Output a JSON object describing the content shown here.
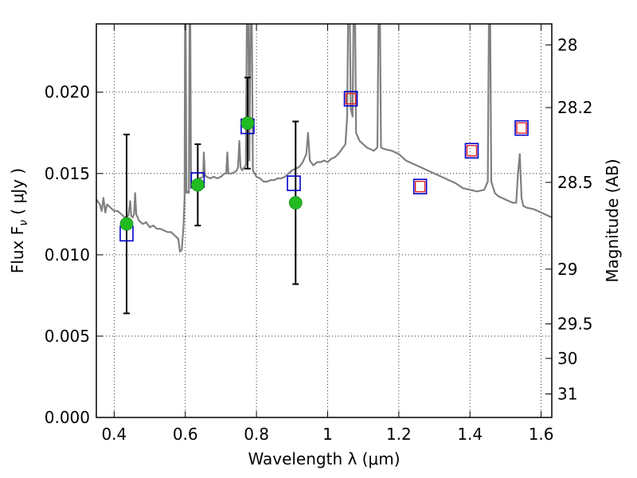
{
  "chart_data": {
    "type": "scatter",
    "xlabel": "Wavelength  λ (μm)",
    "ylabel_left": "Flux  F",
    "ylabel_left_sub": "ν",
    "ylabel_left_unit": "  ( μJy )",
    "ylabel_right": "Magnitude (AB)",
    "xlim": [
      0.35,
      1.63
    ],
    "ylim": [
      0.0,
      0.0242
    ],
    "grid": true,
    "x_ticks": [
      {
        "value": 0.4,
        "label": "0.4"
      },
      {
        "value": 0.6,
        "label": "0.6"
      },
      {
        "value": 0.8,
        "label": "0.8"
      },
      {
        "value": 1.0,
        "label": "1"
      },
      {
        "value": 1.2,
        "label": "1.2"
      },
      {
        "value": 1.4,
        "label": "1.4"
      },
      {
        "value": 1.6,
        "label": "1.6"
      }
    ],
    "y_ticks": [
      {
        "value": 0.0,
        "label": "0.000"
      },
      {
        "value": 0.005,
        "label": "0.005"
      },
      {
        "value": 0.01,
        "label": "0.010"
      },
      {
        "value": 0.015,
        "label": "0.015"
      },
      {
        "value": 0.02,
        "label": "0.020"
      }
    ],
    "mag_ticks": [
      {
        "mag": 28,
        "label": "28"
      },
      {
        "mag": 28.2,
        "label": "28.2"
      },
      {
        "mag": 28.5,
        "label": "28.5"
      },
      {
        "mag": 29,
        "label": "29"
      },
      {
        "mag": 29.5,
        "label": "29.5"
      },
      {
        "mag": 30,
        "label": "30"
      },
      {
        "mag": 31,
        "label": "31"
      }
    ],
    "spectrum": {
      "color": "#808080",
      "points": [
        [
          0.35,
          0.0134
        ],
        [
          0.36,
          0.0131
        ],
        [
          0.365,
          0.0127
        ],
        [
          0.37,
          0.0135
        ],
        [
          0.375,
          0.0126
        ],
        [
          0.38,
          0.0131
        ],
        [
          0.39,
          0.0129
        ],
        [
          0.4,
          0.0127
        ],
        [
          0.41,
          0.0127
        ],
        [
          0.42,
          0.0125
        ],
        [
          0.43,
          0.0123
        ],
        [
          0.44,
          0.0124
        ],
        [
          0.445,
          0.0133
        ],
        [
          0.448,
          0.0124
        ],
        [
          0.452,
          0.0123
        ],
        [
          0.456,
          0.0125
        ],
        [
          0.459,
          0.0138
        ],
        [
          0.462,
          0.0125
        ],
        [
          0.47,
          0.0121
        ],
        [
          0.48,
          0.0119
        ],
        [
          0.49,
          0.012
        ],
        [
          0.5,
          0.0117
        ],
        [
          0.51,
          0.0118
        ],
        [
          0.52,
          0.0116
        ],
        [
          0.53,
          0.0116
        ],
        [
          0.54,
          0.0115
        ],
        [
          0.55,
          0.0114
        ],
        [
          0.56,
          0.0114
        ],
        [
          0.57,
          0.0112
        ],
        [
          0.58,
          0.011
        ],
        [
          0.585,
          0.0102
        ],
        [
          0.59,
          0.0103
        ],
        [
          0.595,
          0.0118
        ],
        [
          0.598,
          0.0135
        ],
        [
          0.6,
          0.03
        ],
        [
          0.603,
          0.0138
        ],
        [
          0.607,
          0.0139
        ],
        [
          0.61,
          0.0138
        ],
        [
          0.613,
          0.03
        ],
        [
          0.616,
          0.0141
        ],
        [
          0.62,
          0.0143
        ],
        [
          0.63,
          0.0145
        ],
        [
          0.64,
          0.0147
        ],
        [
          0.65,
          0.0148
        ],
        [
          0.652,
          0.0163
        ],
        [
          0.655,
          0.0149
        ],
        [
          0.66,
          0.0148
        ],
        [
          0.67,
          0.0147
        ],
        [
          0.68,
          0.0148
        ],
        [
          0.69,
          0.0147
        ],
        [
          0.7,
          0.0148
        ],
        [
          0.71,
          0.015
        ],
        [
          0.715,
          0.015
        ],
        [
          0.718,
          0.0163
        ],
        [
          0.721,
          0.015
        ],
        [
          0.73,
          0.015
        ],
        [
          0.74,
          0.0151
        ],
        [
          0.745,
          0.0152
        ],
        [
          0.748,
          0.0154
        ],
        [
          0.752,
          0.017
        ],
        [
          0.755,
          0.0154
        ],
        [
          0.76,
          0.0152
        ],
        [
          0.77,
          0.0155
        ],
        [
          0.775,
          0.03
        ],
        [
          0.78,
          0.0158
        ],
        [
          0.785,
          0.03
        ],
        [
          0.79,
          0.0152
        ],
        [
          0.8,
          0.0148
        ],
        [
          0.81,
          0.0147
        ],
        [
          0.82,
          0.0145
        ],
        [
          0.83,
          0.0145
        ],
        [
          0.84,
          0.0146
        ],
        [
          0.85,
          0.0146
        ],
        [
          0.86,
          0.0147
        ],
        [
          0.87,
          0.0147
        ],
        [
          0.88,
          0.0148
        ],
        [
          0.89,
          0.015
        ],
        [
          0.9,
          0.0152
        ],
        [
          0.91,
          0.0153
        ],
        [
          0.92,
          0.0154
        ],
        [
          0.93,
          0.0157
        ],
        [
          0.94,
          0.0162
        ],
        [
          0.945,
          0.0175
        ],
        [
          0.95,
          0.0158
        ],
        [
          0.96,
          0.0155
        ],
        [
          0.97,
          0.0157
        ],
        [
          0.98,
          0.0157
        ],
        [
          0.99,
          0.0158
        ],
        [
          1.0,
          0.0157
        ],
        [
          1.01,
          0.0159
        ],
        [
          1.02,
          0.016
        ],
        [
          1.03,
          0.0162
        ],
        [
          1.04,
          0.0165
        ],
        [
          1.05,
          0.0168
        ],
        [
          1.055,
          0.0185
        ],
        [
          1.06,
          0.03
        ],
        [
          1.065,
          0.019
        ],
        [
          1.07,
          0.0185
        ],
        [
          1.075,
          0.03
        ],
        [
          1.08,
          0.0175
        ],
        [
          1.09,
          0.017
        ],
        [
          1.1,
          0.0168
        ],
        [
          1.11,
          0.0166
        ],
        [
          1.12,
          0.0165
        ],
        [
          1.13,
          0.0164
        ],
        [
          1.14,
          0.0166
        ],
        [
          1.145,
          0.03
        ],
        [
          1.15,
          0.0166
        ],
        [
          1.16,
          0.0165
        ],
        [
          1.18,
          0.0164
        ],
        [
          1.2,
          0.0162
        ],
        [
          1.22,
          0.0158
        ],
        [
          1.24,
          0.0156
        ],
        [
          1.26,
          0.0154
        ],
        [
          1.28,
          0.0152
        ],
        [
          1.3,
          0.015
        ],
        [
          1.32,
          0.0148
        ],
        [
          1.34,
          0.0146
        ],
        [
          1.36,
          0.0144
        ],
        [
          1.38,
          0.0141
        ],
        [
          1.4,
          0.014
        ],
        [
          1.42,
          0.0139
        ],
        [
          1.44,
          0.014
        ],
        [
          1.45,
          0.0145
        ],
        [
          1.455,
          0.03
        ],
        [
          1.46,
          0.0145
        ],
        [
          1.47,
          0.0138
        ],
        [
          1.48,
          0.0136
        ],
        [
          1.49,
          0.0135
        ],
        [
          1.5,
          0.0134
        ],
        [
          1.51,
          0.0133
        ],
        [
          1.52,
          0.0132
        ],
        [
          1.53,
          0.0132
        ],
        [
          1.535,
          0.015
        ],
        [
          1.54,
          0.0162
        ],
        [
          1.545,
          0.0135
        ],
        [
          1.55,
          0.013
        ],
        [
          1.56,
          0.0129
        ],
        [
          1.58,
          0.0128
        ],
        [
          1.6,
          0.0126
        ],
        [
          1.62,
          0.0124
        ],
        [
          1.63,
          0.0123
        ]
      ]
    },
    "observed": {
      "color": "#22bb22",
      "points": [
        {
          "x": 0.435,
          "y": 0.0119,
          "err": 0.0055
        },
        {
          "x": 0.635,
          "y": 0.0143,
          "err": 0.0025
        },
        {
          "x": 0.775,
          "y": 0.0181,
          "err": 0.0028
        },
        {
          "x": 0.91,
          "y": 0.0132,
          "err": 0.005
        }
      ]
    },
    "model_blue_squares": {
      "color": "#0000cc",
      "points": [
        {
          "x": 0.435,
          "y": 0.0113
        },
        {
          "x": 0.635,
          "y": 0.0146
        },
        {
          "x": 0.775,
          "y": 0.0179
        },
        {
          "x": 0.905,
          "y": 0.0144
        },
        {
          "x": 1.065,
          "y": 0.0196
        },
        {
          "x": 1.26,
          "y": 0.0142
        },
        {
          "x": 1.405,
          "y": 0.0164
        },
        {
          "x": 1.545,
          "y": 0.0178
        }
      ]
    },
    "model_red_squares": {
      "color": "#dd2222",
      "points": [
        {
          "x": 1.065,
          "y": 0.0196
        },
        {
          "x": 1.26,
          "y": 0.0142
        },
        {
          "x": 1.405,
          "y": 0.0164
        },
        {
          "x": 1.545,
          "y": 0.0178
        }
      ]
    }
  }
}
